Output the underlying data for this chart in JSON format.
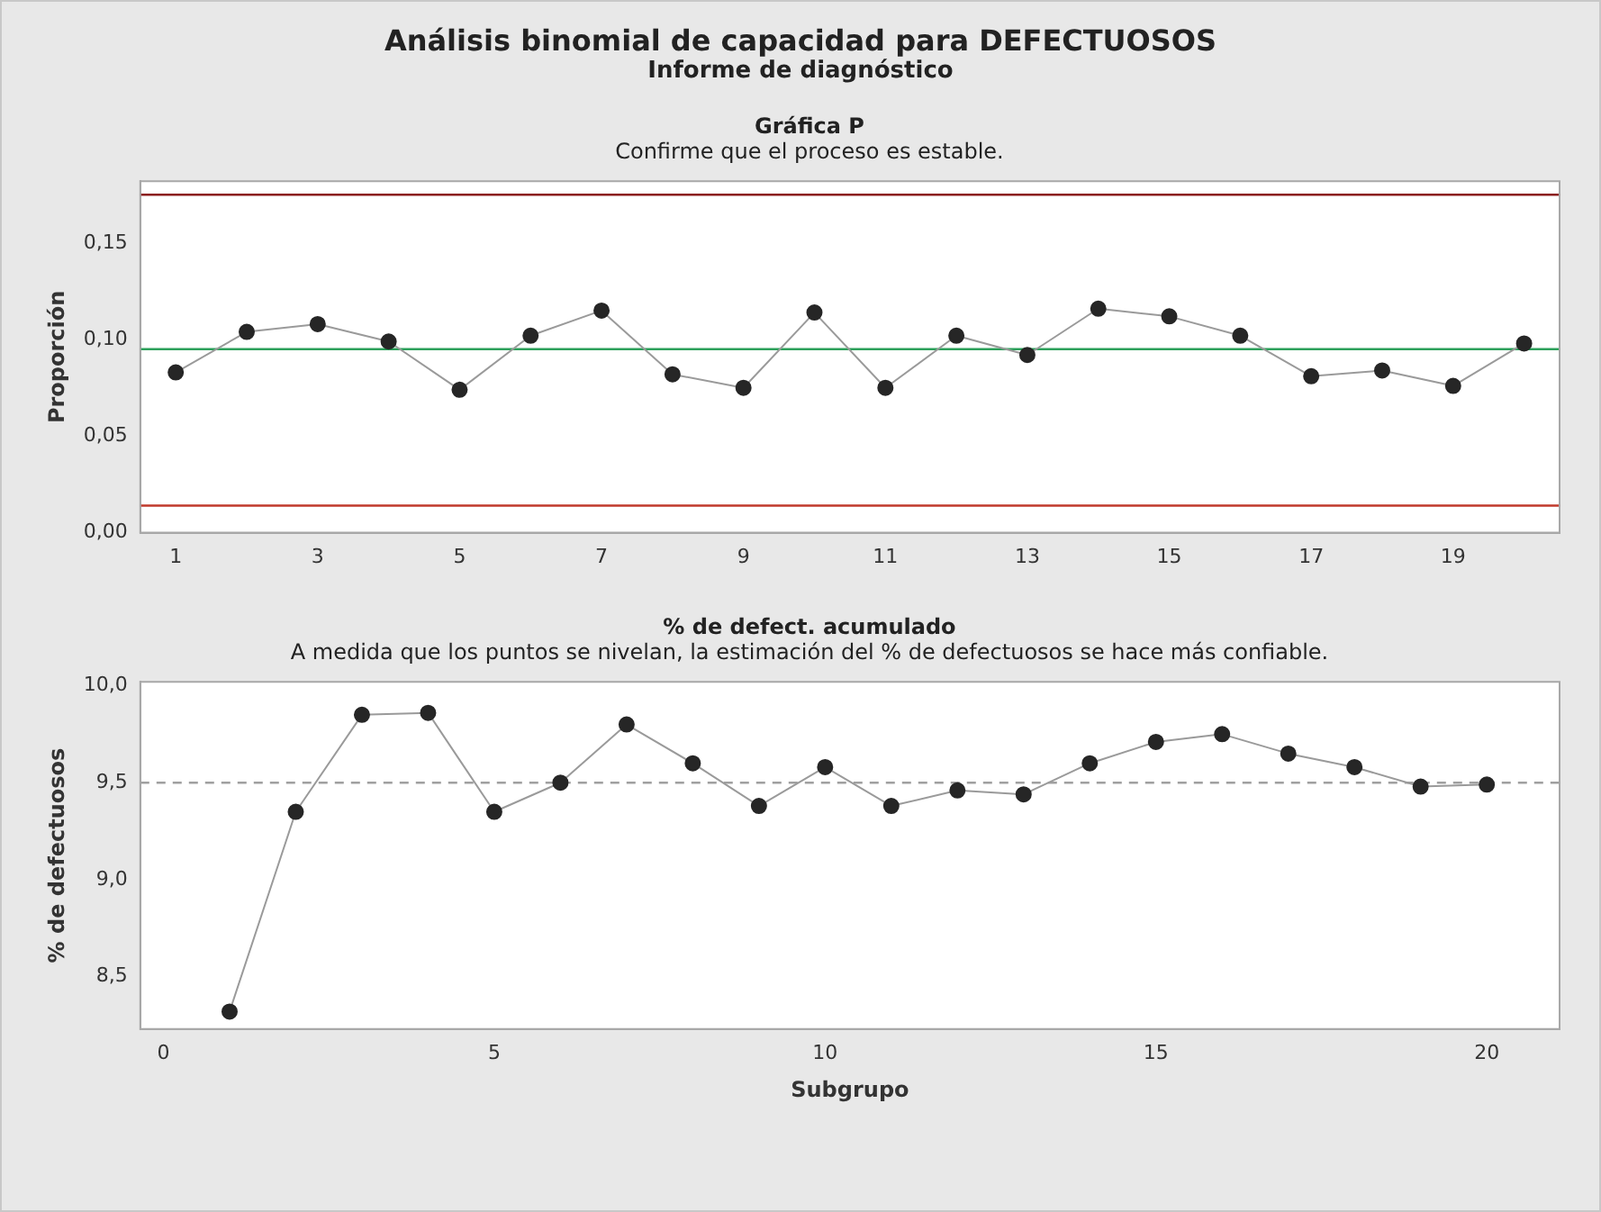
{
  "chart_data": [
    {
      "type": "line",
      "title": "Gráfica P",
      "subtitle": "Confirme que el proceso es estable.",
      "annotations": [
        "Análisis binomial de capacidad para DEFECTUOSOS",
        "Informe de diagnóstico"
      ],
      "ylabel": "Proporción",
      "x": [
        1,
        2,
        3,
        4,
        5,
        6,
        7,
        8,
        9,
        10,
        11,
        12,
        13,
        14,
        15,
        16,
        17,
        18,
        19,
        20
      ],
      "series": [
        {
          "color": "#262626",
          "values": [
            0.083,
            0.104,
            0.108,
            0.099,
            0.074,
            0.102,
            0.115,
            0.082,
            0.075,
            0.114,
            0.075,
            0.102,
            0.092,
            0.116,
            0.112,
            0.102,
            0.081,
            0.084,
            0.076,
            0.098
          ]
        }
      ],
      "marker": "circle",
      "line_style": "solid",
      "xlim": [
        0.5,
        20.5
      ],
      "xticks": [
        1,
        3,
        5,
        7,
        9,
        11,
        13,
        15,
        17,
        19
      ],
      "ylim": [
        0,
        0.182
      ],
      "yticks": [
        {
          "value": 0,
          "label": "0,00"
        },
        {
          "value": 0.05,
          "label": "0,05"
        },
        {
          "value": 0.1,
          "label": "0,10"
        },
        {
          "value": 0.15,
          "label": "0,15"
        }
      ],
      "ref_lines": [
        {
          "axis": "y",
          "value": 0.175,
          "color": "#8b1a1a",
          "line_style": "solid"
        },
        {
          "axis": "y",
          "value": 0.095,
          "color": "#2ca05a",
          "line_style": "solid"
        },
        {
          "axis": "y",
          "value": 0.014,
          "color": "#c0392b",
          "line_style": "solid"
        }
      ],
      "grid": false,
      "legend": false
    },
    {
      "type": "line",
      "title": "% de defect. acumulado",
      "subtitle": "A medida que los puntos se nivelan, la estimación del % de defectuosos se hace más confiable.",
      "xlabel": "Subgrupo",
      "ylabel": "% de defectuosos",
      "x": [
        1,
        2,
        3,
        4,
        5,
        6,
        7,
        8,
        9,
        10,
        11,
        12,
        13,
        14,
        15,
        16,
        17,
        18,
        19,
        20
      ],
      "series": [
        {
          "color": "#262626",
          "values": [
            8.32,
            9.35,
            9.85,
            9.86,
            9.35,
            9.5,
            9.8,
            9.6,
            9.38,
            9.58,
            9.38,
            9.46,
            9.44,
            9.6,
            9.71,
            9.75,
            9.65,
            9.58,
            9.48,
            9.49
          ]
        }
      ],
      "marker": "circle",
      "line_style": "solid",
      "xlim": [
        -0.35,
        21.1
      ],
      "xticks": [
        0,
        5,
        10,
        15,
        20
      ],
      "ylim": [
        8.23,
        10.02
      ],
      "yticks": [
        {
          "value": 8.5,
          "label": "8,5"
        },
        {
          "value": 9,
          "label": "9,0"
        },
        {
          "value": 9.5,
          "label": "9,5"
        },
        {
          "value": 10,
          "label": "10,0"
        }
      ],
      "ref_lines": [
        {
          "axis": "y",
          "value": 9.5,
          "color": "#a0a0a0",
          "line_style": "dashed"
        }
      ],
      "grid": false,
      "legend": false
    }
  ]
}
